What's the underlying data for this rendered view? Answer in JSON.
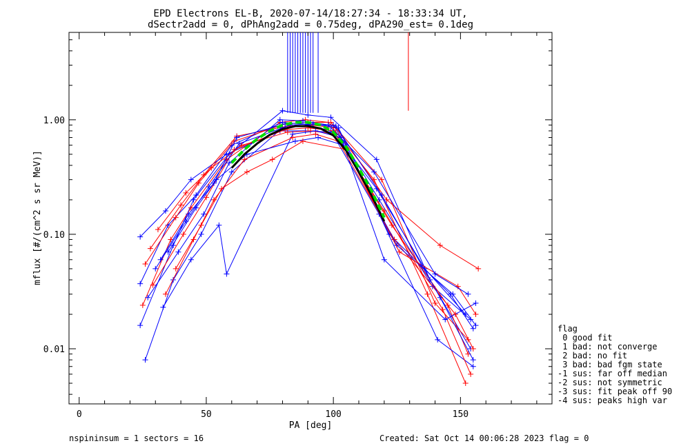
{
  "header": {
    "title_line1": "EPD Electrons EL-B, 2020-07-14/18:27:34 - 18:33:34 UT,",
    "title_line2": "dSectr2add = 0, dPhAng2add = 0.75deg, dPA290_est=   0.1deg"
  },
  "footer": {
    "left": "nspininsum =  1  sectors = 16",
    "right": "Created: Sat Oct 14 00:06:28 2023   flag = 0"
  },
  "legend": {
    "title": "flag",
    "items": [
      " 0 good fit",
      " 1 bad: not converge",
      " 2 bad: no fit",
      " 3 bad: bad fgm state",
      "-1 sus: far off median",
      "-2 sus: not symmetric",
      "-3 sus: fit peak off 90",
      "-4 sus: peaks high var"
    ]
  },
  "colors": {
    "blue": "#0000ff",
    "red": "#ff0000",
    "fit_green": "#00dd00",
    "median_black": "#000000",
    "axes": "#000000"
  },
  "chart_data": {
    "type": "line",
    "title": "EPD Electrons EL-B, 2020-07-14/18:27:34 - 18:33:34 UT,",
    "subtitle": "dSectr2add = 0, dPhAng2add = 0.75deg, dPA290_est=   0.1deg",
    "xlabel": "PA [deg]",
    "ylabel": "mflux [#/(cm^2 s sr MeV)]",
    "xlim": [
      -4,
      186
    ],
    "ylim": [
      0.0033,
      5.8
    ],
    "yscale": "log",
    "x_ticks": [
      0,
      50,
      100,
      150
    ],
    "x_tick_labels": [
      "0",
      "50",
      "100",
      "150"
    ],
    "y_ticks": [
      0.01,
      0.1,
      1.0
    ],
    "y_tick_labels": [
      "0.01",
      "0.10",
      "1.00"
    ],
    "grid": false,
    "legend_position": "outside-right-bottom",
    "series": [
      {
        "color": "blue",
        "x": [
          24,
          37,
          45,
          59,
          80,
          90,
          99,
          117,
          138,
          154
        ],
        "y": [
          0.016,
          0.08,
          0.2,
          0.5,
          1.2,
          1.1,
          1.05,
          0.45,
          0.04,
          0.01
        ]
      },
      {
        "color": "red",
        "x": [
          25,
          36,
          44,
          58,
          79,
          89,
          98,
          116,
          137,
          152
        ],
        "y": [
          0.024,
          0.09,
          0.17,
          0.45,
          0.95,
          1.0,
          0.95,
          0.3,
          0.03,
          0.005
        ]
      },
      {
        "color": "blue",
        "x": [
          24,
          35,
          46,
          60,
          80,
          92,
          100,
          118,
          139,
          154
        ],
        "y": [
          0.037,
          0.12,
          0.22,
          0.6,
          0.95,
          0.9,
          0.9,
          0.2,
          0.035,
          0.018
        ]
      },
      {
        "color": "red",
        "x": [
          26,
          38,
          47,
          61,
          81,
          90,
          99,
          119,
          140,
          153
        ],
        "y": [
          0.055,
          0.14,
          0.28,
          0.65,
          0.92,
          0.95,
          0.95,
          0.3,
          0.025,
          0.012
        ]
      },
      {
        "color": "blue",
        "x": [
          24,
          34,
          44,
          58,
          79,
          89,
          100,
          117,
          136,
          152
        ],
        "y": [
          0.095,
          0.16,
          0.3,
          0.5,
          0.8,
          0.8,
          0.78,
          0.25,
          0.05,
          0.02
        ]
      },
      {
        "color": "red",
        "x": [
          28,
          40,
          49,
          62,
          82,
          91,
          101,
          121,
          142,
          157
        ],
        "y": [
          0.075,
          0.18,
          0.33,
          0.72,
          0.88,
          0.9,
          0.85,
          0.2,
          0.08,
          0.05
        ]
      },
      {
        "color": "blue",
        "x": [
          26,
          37,
          48,
          60,
          80,
          90,
          99,
          118,
          141,
          155
        ],
        "y": [
          0.008,
          0.04,
          0.1,
          0.35,
          0.85,
          0.9,
          0.8,
          0.15,
          0.012,
          0.007
        ]
      },
      {
        "color": "red",
        "x": [
          29,
          41,
          50,
          61,
          81,
          90,
          100,
          120,
          143,
          154
        ],
        "y": [
          0.036,
          0.1,
          0.21,
          0.55,
          0.82,
          0.85,
          0.8,
          0.16,
          0.022,
          0.006
        ]
      },
      {
        "color": "blue",
        "x": [
          30,
          42,
          51,
          63,
          83,
          92,
          102,
          122,
          146,
          155
        ],
        "y": [
          0.05,
          0.13,
          0.26,
          0.62,
          0.9,
          0.92,
          0.85,
          0.1,
          0.03,
          0.015
        ]
      },
      {
        "color": "red",
        "x": [
          31,
          42,
          52,
          64,
          82,
          91,
          101,
          123,
          145,
          153
        ],
        "y": [
          0.11,
          0.23,
          0.38,
          0.6,
          0.78,
          0.8,
          0.75,
          0.12,
          0.024,
          0.009
        ]
      },
      {
        "color": "blue",
        "x": [
          33,
          44,
          55,
          58,
          84,
          93,
          103,
          120,
          144,
          156
        ],
        "y": [
          0.023,
          0.06,
          0.12,
          0.045,
          0.75,
          0.8,
          0.7,
          0.06,
          0.018,
          0.025
        ]
      },
      {
        "color": "red",
        "x": [
          34,
          45,
          53,
          65,
          84,
          93,
          102,
          124,
          148,
          155
        ],
        "y": [
          0.03,
          0.09,
          0.2,
          0.45,
          0.7,
          0.75,
          0.65,
          0.09,
          0.02,
          0.01
        ]
      },
      {
        "color": "blue",
        "x": [
          35,
          46,
          54,
          66,
          85,
          94,
          104,
          125,
          147,
          156
        ],
        "y": [
          0.07,
          0.17,
          0.3,
          0.5,
          0.65,
          0.7,
          0.6,
          0.08,
          0.03,
          0.016
        ]
      },
      {
        "color": "red",
        "x": [
          38,
          48,
          56,
          66,
          76,
          88,
          105,
          126,
          149,
          156
        ],
        "y": [
          0.05,
          0.12,
          0.25,
          0.35,
          0.45,
          0.65,
          0.55,
          0.07,
          0.035,
          0.02
        ]
      },
      {
        "color": "blue",
        "x": [
          27,
          39,
          49,
          59,
          79,
          88,
          98,
          116,
          140,
          153
        ],
        "y": [
          0.028,
          0.07,
          0.15,
          0.42,
          1.0,
          0.98,
          0.9,
          0.35,
          0.045,
          0.03
        ]
      },
      {
        "color": "blue",
        "x": [
          32,
          43,
          53,
          62,
          81,
          91,
          101,
          119,
          142,
          155
        ],
        "y": [
          0.06,
          0.15,
          0.28,
          0.7,
          0.92,
          0.95,
          0.88,
          0.22,
          0.028,
          0.008
        ]
      }
    ],
    "fit_curve": {
      "color": "fit_green",
      "style": "dashed",
      "x": [
        60,
        65,
        70,
        75,
        80,
        85,
        90,
        95,
        100,
        105,
        110,
        115,
        120
      ],
      "y": [
        0.42,
        0.55,
        0.68,
        0.8,
        0.9,
        0.95,
        0.95,
        0.9,
        0.78,
        0.58,
        0.38,
        0.24,
        0.14
      ]
    },
    "median_curve": {
      "color": "median_black",
      "style": "solid",
      "x": [
        60,
        65,
        70,
        75,
        80,
        85,
        90,
        95,
        100,
        105,
        110,
        115,
        120
      ],
      "y": [
        0.38,
        0.5,
        0.62,
        0.74,
        0.83,
        0.88,
        0.88,
        0.84,
        0.73,
        0.54,
        0.35,
        0.22,
        0.13
      ]
    },
    "spikes": [
      {
        "color": "blue",
        "x": [
          82,
          83,
          84,
          85,
          86,
          87,
          88,
          89,
          90,
          91,
          92,
          94
        ],
        "y_from": 1.15,
        "y_to": 5.8
      },
      {
        "color": "red",
        "x": [
          129.5
        ],
        "y_from": 1.2,
        "y_to": 5.8
      }
    ]
  }
}
